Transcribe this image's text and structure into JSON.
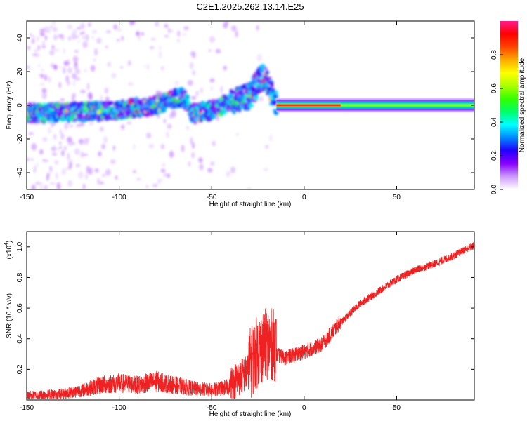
{
  "title": "C2E1.2025.262.13.14.E25",
  "chart_data": [
    {
      "type": "heatmap",
      "xlabel": "Height of straight line (km)",
      "ylabel": "Frequency (Hz)",
      "xlim": [
        -150,
        92
      ],
      "ylim": [
        -50,
        50
      ],
      "xticks": [
        -150,
        -100,
        -50,
        0,
        50
      ],
      "yticks": [
        -40,
        -20,
        0,
        20,
        40
      ],
      "colorbar": {
        "label": "Normalized spectral amplitude",
        "range": [
          0,
          1
        ],
        "ticks": [
          0.0,
          0.2,
          0.4,
          0.6,
          0.8
        ],
        "colors": [
          "#ffffff",
          "#cc99ff",
          "#8800ff",
          "#2200ff",
          "#0088ff",
          "#00ffff",
          "#00ff66",
          "#33ff00",
          "#aaff00",
          "#ffff00",
          "#ffaa00",
          "#ff4400",
          "#ff0000",
          "#ff1a8c"
        ]
      },
      "ridge": {
        "description_points_x": [
          -150,
          -120,
          -100,
          -80,
          -66,
          -60,
          -50,
          -40,
          -30,
          -22,
          -15,
          0,
          20,
          50,
          92
        ],
        "description_points_y": [
          -5,
          -4,
          -3,
          0,
          5,
          -5,
          -3,
          2,
          5,
          18,
          0,
          0,
          0,
          0,
          0
        ],
        "peak_band_x": [
          -15,
          20
        ],
        "peak_band_y": 0
      }
    },
    {
      "type": "line",
      "xlabel": "Height of straight line (km)",
      "ylabel": "SNR (10 * v/v)",
      "multiplier": "(x10",
      "multiplier_exp": "4",
      "close_paren": ")",
      "xlim": [
        -150,
        92
      ],
      "ylim": [
        0,
        1.1
      ],
      "xticks": [
        -150,
        -100,
        -50,
        0,
        50
      ],
      "yticks": [
        0.2,
        0.4,
        0.6,
        0.8,
        1.0
      ],
      "ytick_labels": [
        "0.2",
        "0.4",
        "0.6",
        "0.8",
        "1.0"
      ],
      "color": "#ee2222",
      "trend_x": [
        -150,
        -130,
        -120,
        -110,
        -100,
        -90,
        -80,
        -70,
        -60,
        -50,
        -40,
        -30,
        -25,
        -20,
        -15,
        -10,
        0,
        10,
        20,
        30,
        40,
        50,
        60,
        70,
        80,
        88,
        92
      ],
      "trend_y": [
        0.02,
        0.03,
        0.05,
        0.08,
        0.09,
        0.08,
        0.1,
        0.08,
        0.06,
        0.05,
        0.07,
        0.15,
        0.25,
        0.3,
        0.28,
        0.26,
        0.3,
        0.35,
        0.5,
        0.62,
        0.7,
        0.78,
        0.84,
        0.88,
        0.93,
        0.98,
        1.0
      ]
    }
  ]
}
